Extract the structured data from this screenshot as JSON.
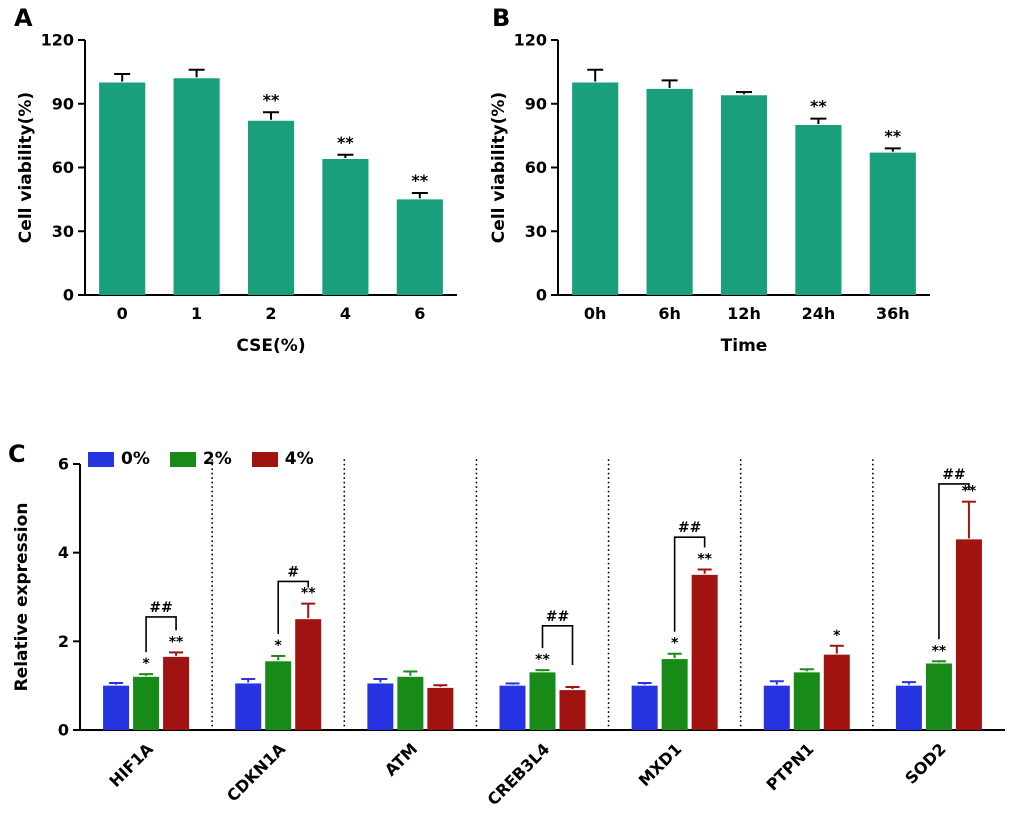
{
  "panel_labels": {
    "a": "A",
    "b": "B",
    "c": "C"
  },
  "colors": {
    "teal": "#199F7B",
    "blue": "#2534E0",
    "green": "#188A18",
    "red": "#A01311",
    "axis": "#000000"
  },
  "chart_data": [
    {
      "id": "a",
      "type": "bar",
      "panel": "A",
      "categories": [
        "0",
        "1",
        "2",
        "4",
        "6"
      ],
      "values": [
        100,
        102,
        82,
        64,
        45
      ],
      "errors": [
        4,
        4,
        4,
        2,
        3
      ],
      "sig": [
        "",
        "",
        "**",
        "**",
        "**"
      ],
      "xlabel": "CSE(%)",
      "ylabel": "Cell viability(%)",
      "ylim": [
        0,
        120
      ],
      "yticks": [
        0,
        30,
        60,
        90,
        120
      ],
      "bar_color": "#199F7B",
      "grid": false
    },
    {
      "id": "b",
      "type": "bar",
      "panel": "B",
      "categories": [
        "0h",
        "6h",
        "12h",
        "24h",
        "36h"
      ],
      "values": [
        100,
        97,
        94,
        80,
        67
      ],
      "errors": [
        6,
        4,
        1.5,
        3,
        2
      ],
      "sig": [
        "",
        "",
        "",
        "**",
        "**"
      ],
      "xlabel": "Time",
      "ylabel": "Cell viability(%)",
      "ylim": [
        0,
        120
      ],
      "yticks": [
        0,
        30,
        60,
        90,
        120
      ],
      "bar_color": "#199F7B",
      "grid": false
    },
    {
      "id": "c",
      "type": "grouped-bar",
      "panel": "C",
      "categories": [
        "HIF1A",
        "CDKN1A",
        "ATM",
        "CREB3L4",
        "MXD1",
        "PTPN1",
        "SOD2"
      ],
      "series": [
        {
          "name": "0%",
          "color": "#2534E0",
          "values": [
            1.0,
            1.05,
            1.05,
            1.0,
            1.0,
            1.0,
            1.0
          ],
          "errors": [
            0.06,
            0.1,
            0.1,
            0.05,
            0.06,
            0.1,
            0.08
          ],
          "sig": [
            "",
            "",
            "",
            "",
            "",
            "",
            ""
          ]
        },
        {
          "name": "2%",
          "color": "#188A18",
          "values": [
            1.2,
            1.55,
            1.2,
            1.3,
            1.6,
            1.3,
            1.5
          ],
          "errors": [
            0.06,
            0.12,
            0.12,
            0.05,
            0.12,
            0.07,
            0.05
          ],
          "sig": [
            "*",
            "*",
            "",
            "**",
            "*",
            "",
            "**"
          ]
        },
        {
          "name": "4%",
          "color": "#A01311",
          "values": [
            1.65,
            2.5,
            0.95,
            0.9,
            3.5,
            1.7,
            4.3
          ],
          "errors": [
            0.1,
            0.35,
            0.06,
            0.07,
            0.12,
            0.2,
            0.85
          ],
          "sig": [
            "**",
            "**",
            "",
            "",
            "**",
            "*",
            "**"
          ]
        }
      ],
      "brackets": [
        {
          "group": 0,
          "from": 1,
          "to": 2,
          "label": "##",
          "y": 2.55
        },
        {
          "group": 1,
          "from": 1,
          "to": 2,
          "label": "#",
          "y": 3.35
        },
        {
          "group": 3,
          "from": 1,
          "to": 2,
          "label": "##",
          "y": 2.35
        },
        {
          "group": 4,
          "from": 1,
          "to": 2,
          "label": "##",
          "y": 4.35
        },
        {
          "group": 6,
          "from": 1,
          "to": 2,
          "label": "##",
          "y": 5.55
        }
      ],
      "legend": [
        "0%",
        "2%",
        "4%"
      ],
      "xlabel": "",
      "ylabel": "Relative expression",
      "ylim": [
        0,
        6
      ],
      "yticks": [
        0,
        2,
        4,
        6
      ],
      "grid": false
    }
  ]
}
